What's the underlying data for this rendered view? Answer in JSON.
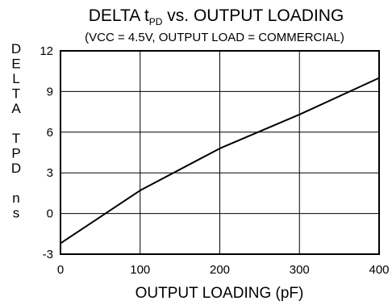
{
  "chart_data": {
    "type": "line",
    "title_main": "DELTA t",
    "title_sub_script": "PD",
    "title_rest": " vs. OUTPUT LOADING",
    "subtitle": "(VCC = 4.5V, OUTPUT LOAD = COMMERCIAL)",
    "xlabel": "OUTPUT LOADING (pF)",
    "ylabel_letters": [
      "D",
      "E",
      "L",
      "T",
      "A",
      "",
      "T",
      "P",
      "D",
      "",
      "n",
      "s"
    ],
    "xlim": [
      0,
      400
    ],
    "ylim": [
      -3,
      12
    ],
    "x_ticks": [
      0,
      100,
      200,
      300,
      400
    ],
    "y_ticks": [
      -3,
      0,
      3,
      6,
      9,
      12
    ],
    "grid": true,
    "series": [
      {
        "x": [
          0,
          100,
          200,
          300,
          400
        ],
        "y": [
          -2.2,
          1.7,
          4.8,
          7.3,
          10.0
        ]
      }
    ]
  }
}
